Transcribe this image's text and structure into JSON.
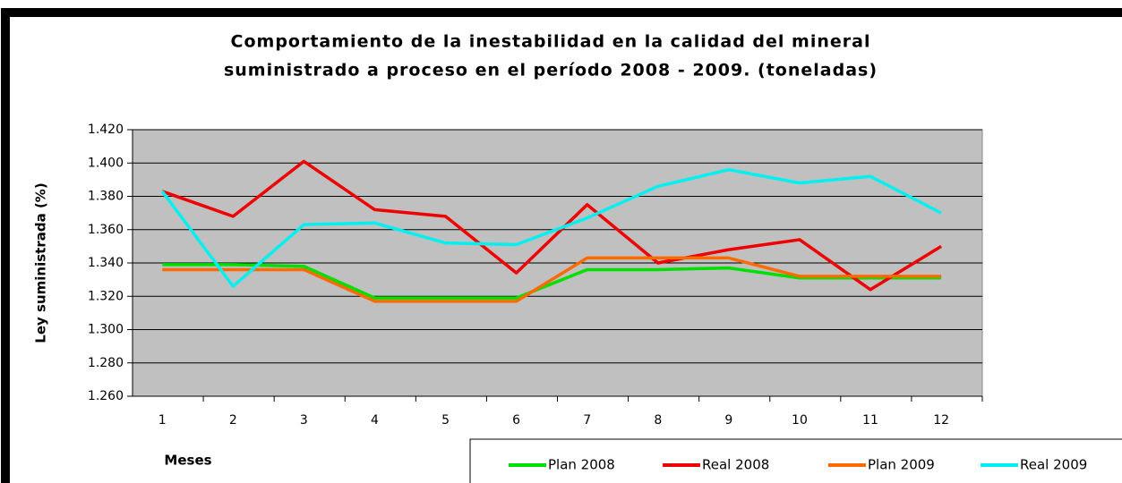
{
  "chart_data": {
    "type": "line",
    "title": [
      "Comportamiento de la inestabilidad en la calidad del mineral",
      "suministrado a proceso en el período 2008 - 2009. (toneladas)"
    ],
    "x_label": "Meses",
    "y_label": "Ley suministrada (%)",
    "categories": [
      "1",
      "2",
      "3",
      "4",
      "5",
      "6",
      "7",
      "8",
      "9",
      "10",
      "11",
      "12"
    ],
    "series": [
      {
        "name": "Plan 2008",
        "color": "#00e000",
        "values": [
          1.339,
          1.339,
          1.338,
          1.319,
          1.319,
          1.319,
          1.336,
          1.336,
          1.337,
          1.331,
          1.331,
          1.331
        ]
      },
      {
        "name": "Real 2008",
        "color": "#ee0000",
        "values": [
          1.383,
          1.368,
          1.401,
          1.372,
          1.368,
          1.334,
          1.375,
          1.34,
          1.348,
          1.354,
          1.324,
          1.35
        ]
      },
      {
        "name": "Plan 2009",
        "color": "#ff6a00",
        "values": [
          1.336,
          1.336,
          1.336,
          1.317,
          1.317,
          1.317,
          1.343,
          1.343,
          1.343,
          1.332,
          1.332,
          1.332
        ]
      },
      {
        "name": "Real 2009",
        "color": "#00f0f0",
        "values": [
          1.383,
          1.326,
          1.363,
          1.364,
          1.352,
          1.351,
          1.367,
          1.386,
          1.396,
          1.388,
          1.392,
          1.37
        ]
      }
    ],
    "ylim": [
      1.26,
      1.42
    ],
    "yticks": [
      {
        "value": 1.26,
        "label": "1.260"
      },
      {
        "value": 1.28,
        "label": "1.280"
      },
      {
        "value": 1.3,
        "label": "1.300"
      },
      {
        "value": 1.32,
        "label": "1.320"
      },
      {
        "value": 1.34,
        "label": "1.340"
      },
      {
        "value": 1.36,
        "label": "1.360"
      },
      {
        "value": 1.38,
        "label": "1.380"
      },
      {
        "value": 1.4,
        "label": "1.400"
      },
      {
        "value": 1.42,
        "label": "1.420"
      }
    ],
    "grid": true,
    "legend": "bottom-right"
  }
}
